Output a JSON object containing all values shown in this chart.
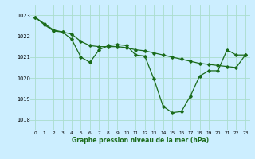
{
  "background_color": "#cceeff",
  "grid_color": "#aaddcc",
  "line_color": "#1a6b1a",
  "series1": {
    "x": [
      0,
      1,
      2,
      3,
      4,
      5,
      6,
      7,
      8,
      9,
      10,
      11,
      12,
      13,
      14,
      15,
      16,
      17,
      18,
      19,
      20,
      21,
      22,
      23
    ],
    "y": [
      1022.9,
      1022.6,
      1022.3,
      1022.2,
      1021.85,
      1021.0,
      1020.75,
      1021.35,
      1021.55,
      1021.6,
      1021.55,
      1021.1,
      1021.05,
      1019.95,
      1018.65,
      1018.35,
      1018.4,
      1019.15,
      1020.1,
      1020.35,
      1020.35,
      1021.35,
      1021.1,
      1021.1
    ]
  },
  "series2": {
    "x": [
      0,
      1,
      2,
      3,
      4,
      5,
      6,
      7,
      8,
      9,
      10,
      11,
      12,
      13,
      14,
      15,
      16,
      17,
      18,
      19,
      20,
      21,
      22,
      23
    ],
    "y": [
      1022.9,
      1022.55,
      1022.25,
      1022.2,
      1022.1,
      1021.75,
      1021.55,
      1021.5,
      1021.5,
      1021.5,
      1021.45,
      1021.35,
      1021.3,
      1021.2,
      1021.1,
      1021.0,
      1020.9,
      1020.8,
      1020.7,
      1020.65,
      1020.6,
      1020.55,
      1020.5,
      1021.1
    ]
  },
  "ylim": [
    1017.5,
    1023.5
  ],
  "yticks": [
    1018,
    1019,
    1020,
    1021,
    1022,
    1023
  ],
  "xticks": [
    0,
    1,
    2,
    3,
    4,
    5,
    6,
    7,
    8,
    9,
    10,
    11,
    12,
    13,
    14,
    15,
    16,
    17,
    18,
    19,
    20,
    21,
    22,
    23
  ],
  "xlabel": "Graphe pression niveau de la mer (hPa)",
  "marker": "D",
  "markersize": 1.8,
  "linewidth": 0.9
}
